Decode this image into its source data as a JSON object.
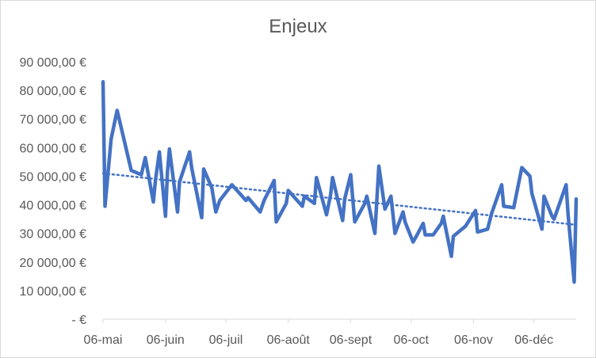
{
  "chart_data": {
    "type": "line",
    "title": "Enjeux",
    "xlabel": "",
    "ylabel": "",
    "ylim": [
      0,
      90000
    ],
    "y_ticks": [
      0,
      10000,
      20000,
      30000,
      40000,
      50000,
      60000,
      70000,
      80000,
      90000
    ],
    "y_tick_labels": [
      "-  €",
      "10 000,00 €",
      "20 000,00 €",
      "30 000,00 €",
      "40 000,00 €",
      "50 000,00 €",
      "60 000,00 €",
      "70 000,00 €",
      "80 000,00 €",
      "90 000,00 €"
    ],
    "x_tick_labels": [
      "06-mai",
      "06-juin",
      "06-juil",
      "06-août",
      "06-sept",
      "06-oct",
      "06-nov",
      "06-déc"
    ],
    "x_range": [
      "2019-05-06",
      "2019-12-27"
    ],
    "grid": false,
    "legend": "none",
    "series": [
      {
        "x": [
          "2019-05-06",
          "2019-05-07",
          "2019-05-10",
          "2019-05-13",
          "2019-05-20",
          "2019-05-25",
          "2019-05-27",
          "2019-05-31",
          "2019-06-01",
          "2019-06-03",
          "2019-06-06",
          "2019-06-07",
          "2019-06-08",
          "2019-06-12",
          "2019-06-13",
          "2019-06-18",
          "2019-06-19",
          "2019-06-24",
          "2019-06-25",
          "2019-06-29",
          "2019-07-01",
          "2019-07-03",
          "2019-07-09",
          "2019-07-16",
          "2019-07-17",
          "2019-07-23",
          "2019-07-25",
          "2019-07-30",
          "2019-07-31",
          "2019-08-05",
          "2019-08-06",
          "2019-08-13",
          "2019-08-14",
          "2019-08-19",
          "2019-08-20",
          "2019-08-25",
          "2019-08-27",
          "2019-08-28",
          "2019-09-02",
          "2019-09-03",
          "2019-09-06",
          "2019-09-08",
          "2019-09-13",
          "2019-09-14",
          "2019-09-18",
          "2019-09-20",
          "2019-09-23",
          "2019-09-26",
          "2019-09-28",
          "2019-10-02",
          "2019-10-03",
          "2019-10-07",
          "2019-10-09",
          "2019-10-12",
          "2019-10-13",
          "2019-10-17",
          "2019-10-21",
          "2019-10-22",
          "2019-10-26",
          "2019-10-27",
          "2019-11-02",
          "2019-11-07",
          "2019-11-08",
          "2019-11-13",
          "2019-11-15",
          "2019-11-20",
          "2019-11-21",
          "2019-11-26",
          "2019-11-30",
          "2019-12-04",
          "2019-12-05",
          "2019-12-10",
          "2019-12-11",
          "2019-12-15",
          "2019-12-16",
          "2019-12-22",
          "2019-12-23",
          "2019-12-26",
          "2019-12-27"
        ],
        "values": [
          83000,
          39500,
          63000,
          73000,
          52000,
          50500,
          56500,
          41000,
          48500,
          58500,
          36000,
          51500,
          59500,
          37500,
          48000,
          58500,
          53000,
          35500,
          52500,
          46000,
          37500,
          41500,
          47000,
          41500,
          42500,
          37500,
          41500,
          48500,
          34000,
          40500,
          45000,
          39500,
          43000,
          40500,
          49500,
          36500,
          43500,
          49500,
          34500,
          42000,
          50500,
          34000,
          40500,
          43000,
          30000,
          53500,
          38500,
          43000,
          30000,
          37500,
          34000,
          27000,
          29500,
          33500,
          29500,
          29500,
          33500,
          36000,
          22000,
          29000,
          32500,
          38000,
          30500,
          31500,
          37000,
          47000,
          39500,
          39000,
          53000,
          50000,
          44000,
          31500,
          43000,
          36000,
          35000,
          47000,
          36500,
          13000,
          42000
        ]
      }
    ],
    "trendline": {
      "type": "linear",
      "start": 51000,
      "end": 33000
    }
  },
  "colors": {
    "line": "#4472c4",
    "text": "#595959",
    "axis": "#d9d9d9",
    "border": "#d9d9d9"
  }
}
